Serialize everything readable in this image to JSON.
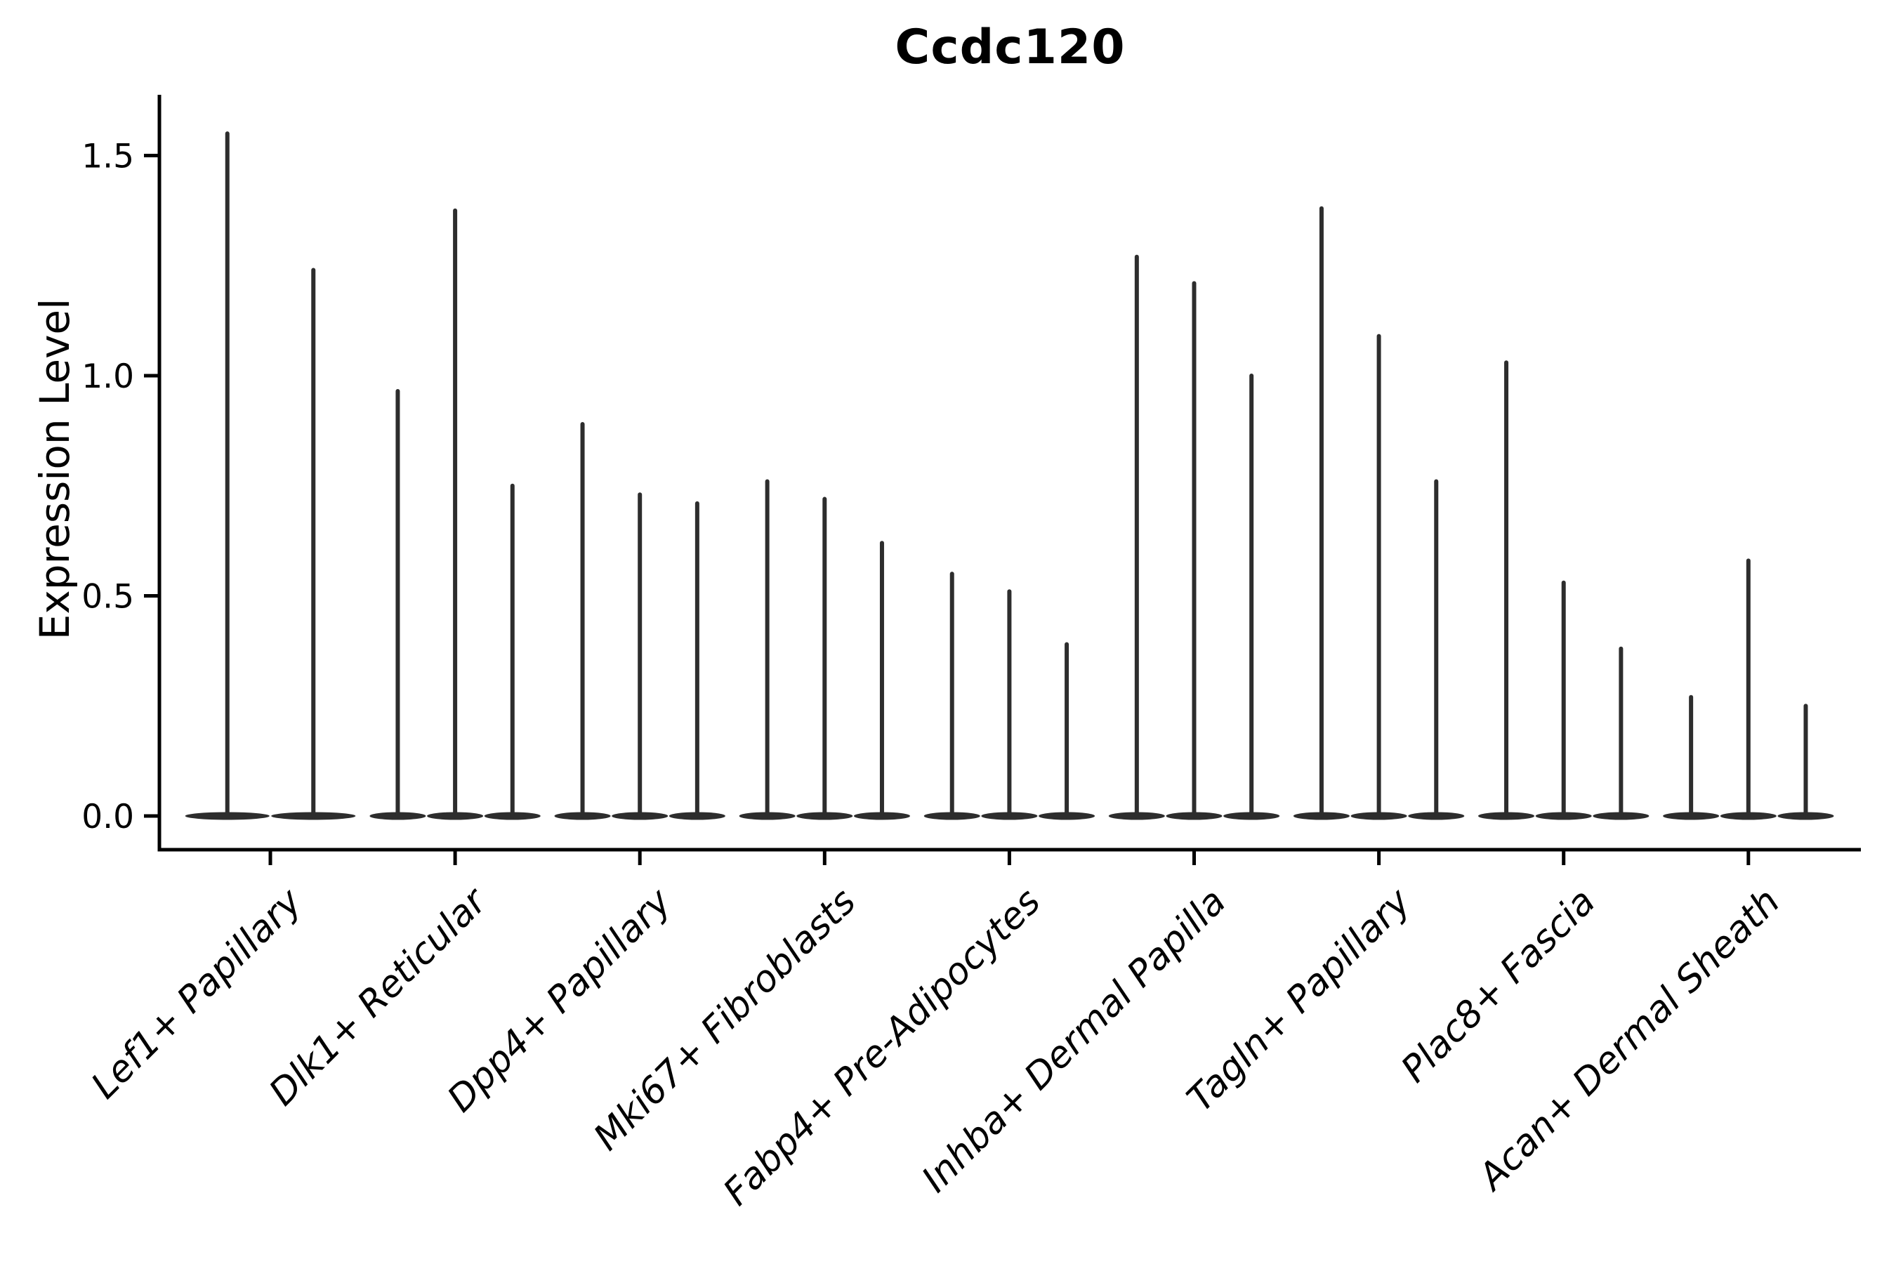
{
  "figure": {
    "title": "Ccdc120",
    "y_axis": {
      "label": "Expression Level",
      "tick_labels": [
        "0.0",
        "0.5",
        "1.0",
        "1.5"
      ]
    },
    "colors": {
      "violin": "#2d2d2d",
      "axis": "#000000",
      "text": "#000000",
      "background": "#ffffff"
    }
  },
  "chart_data": {
    "type": "violin",
    "title": "Ccdc120",
    "xlabel": "",
    "ylabel": "Expression Level",
    "ylim": [
      -0.08,
      1.64
    ],
    "yticks": [
      0.0,
      0.5,
      1.0,
      1.5
    ],
    "ytick_labels": [
      "0.0",
      "0.5",
      "1.0",
      "1.5"
    ],
    "grid": false,
    "legend": "none",
    "style_note": "Seurat-style VlnPlot: each cluster shows 2-3 extremely thin violins, flat at expression 0 with a narrow vertical spike reaching the maximum expression value",
    "categories": [
      "Lef1+ Papillary",
      "Dlk1+ Reticular",
      "Dpp4+ Papillary",
      "Mki67+ Fibroblasts",
      "Fabp4+ Pre-Adipocytes",
      "Inhba+ Dermal Papilla",
      "Tagln+ Papillary",
      "Plac8+ Fascia",
      "Acan+ Dermal Sheath"
    ],
    "baseline_value": 0.0,
    "groups": [
      {
        "category": "Lef1+ Papillary",
        "spike_maxima": [
          1.55,
          1.24
        ]
      },
      {
        "category": "Dlk1+ Reticular",
        "spike_maxima": [
          0.965,
          1.375,
          0.75
        ]
      },
      {
        "category": "Dpp4+ Papillary",
        "spike_maxima": [
          0.89,
          0.73,
          0.71
        ]
      },
      {
        "category": "Mki67+ Fibroblasts",
        "spike_maxima": [
          0.76,
          0.72,
          0.62
        ]
      },
      {
        "category": "Fabp4+ Pre-Adipocytes",
        "spike_maxima": [
          0.55,
          0.51,
          0.39
        ]
      },
      {
        "category": "Inhba+ Dermal Papilla",
        "spike_maxima": [
          1.27,
          1.21,
          1.0
        ]
      },
      {
        "category": "Tagln+ Papillary",
        "spike_maxima": [
          1.38,
          1.09,
          0.76
        ]
      },
      {
        "category": "Plac8+ Fascia",
        "spike_maxima": [
          1.03,
          0.53,
          0.38
        ]
      },
      {
        "category": "Acan+ Dermal Sheath",
        "spike_maxima": [
          0.27,
          0.58,
          0.25
        ]
      }
    ]
  }
}
